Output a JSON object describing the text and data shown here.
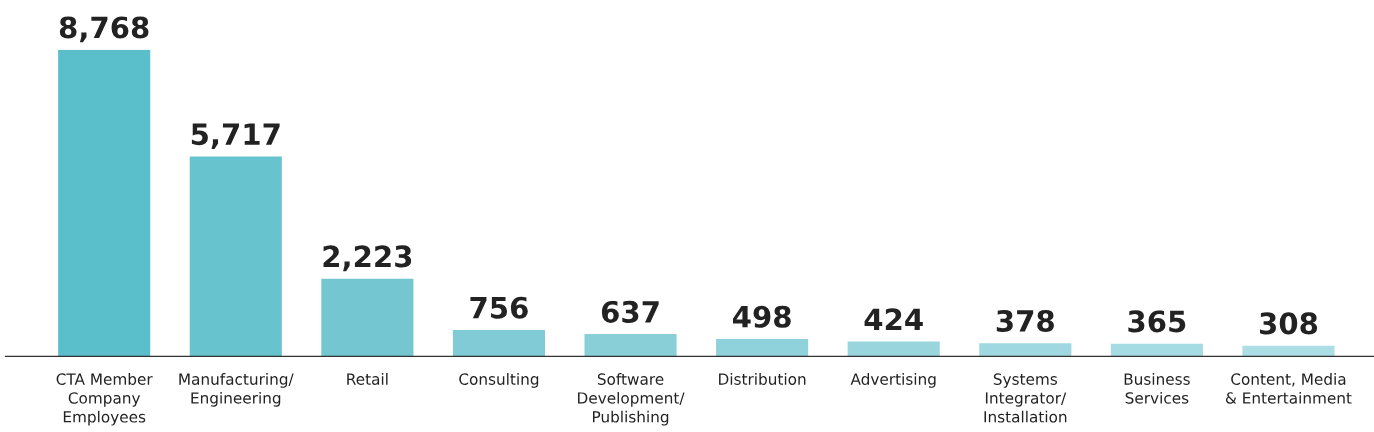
{
  "chart_data": {
    "type": "bar",
    "categories": [
      "CTA Member\nCompany\nEmployees",
      "Manufacturing/\nEngineering",
      "Retail",
      "Consulting",
      "Software\nDevelopment/\nPublishing",
      "Distribution",
      "Advertising",
      "Systems\nIntegrator/\nInstallation",
      "Business\nServices",
      "Content, Media\n& Entertainment"
    ],
    "values": [
      8768,
      5717,
      2223,
      756,
      637,
      498,
      424,
      378,
      365,
      308
    ],
    "colors": [
      "#5bbfcb",
      "#67c3ce",
      "#74c7d1",
      "#80cbd5",
      "#89cfd8",
      "#90d2db",
      "#98d5dd",
      "#9fd8e0",
      "#a5dbe2",
      "#abdee5"
    ],
    "value_labels": [
      "8,768",
      "5,717",
      "2,223",
      "756",
      "637",
      "498",
      "424",
      "378",
      "365",
      "308"
    ],
    "grid": false,
    "legend": false
  }
}
